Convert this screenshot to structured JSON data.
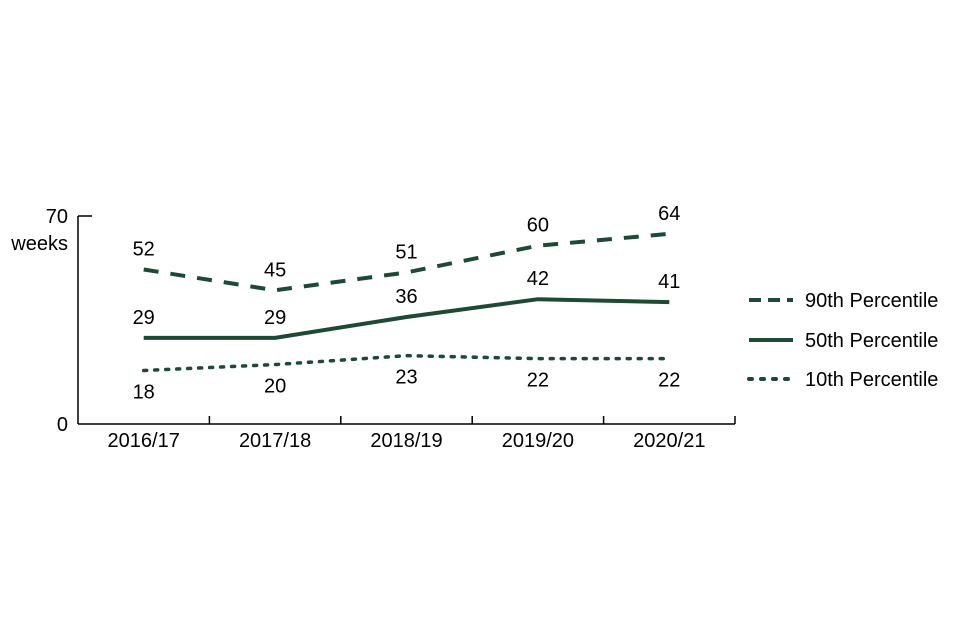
{
  "chart_data": {
    "type": "line",
    "categories": [
      "2016/17",
      "2017/18",
      "2018/19",
      "2019/20",
      "2020/21"
    ],
    "series": [
      {
        "name": "90th Percentile",
        "values": [
          52,
          45,
          51,
          60,
          64
        ],
        "style": "dashed",
        "color": "#1d4a35"
      },
      {
        "name": "50th Percentile",
        "values": [
          29,
          29,
          36,
          42,
          41
        ],
        "style": "solid",
        "color": "#1d4a35"
      },
      {
        "name": "10th Percentile",
        "values": [
          18,
          20,
          23,
          22,
          22
        ],
        "style": "dotted",
        "color": "#1d4a35"
      }
    ],
    "ylim": [
      0,
      70
    ],
    "ytick_labels": [
      "0",
      "70"
    ],
    "yunit": "weeks",
    "grid": false,
    "legend_position": "right"
  }
}
